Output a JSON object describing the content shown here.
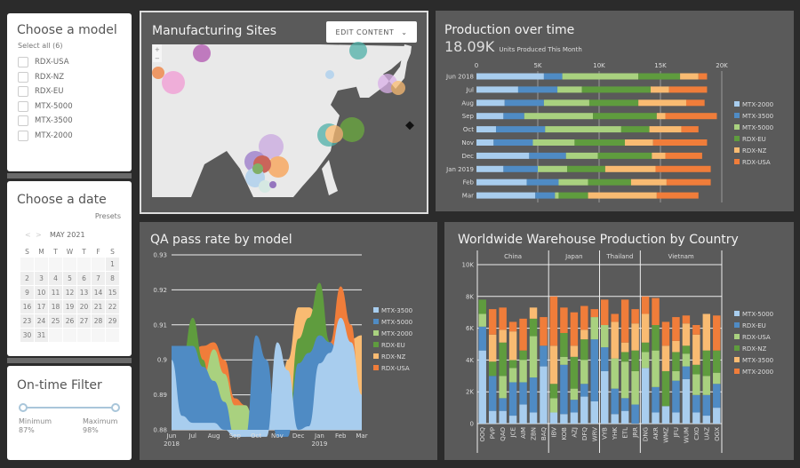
{
  "model_filter": {
    "title": "Choose a model",
    "select_all": "Select all (6)",
    "items": [
      "RDX-USA",
      "RDX-NZ",
      "RDX-EU",
      "MTX-5000",
      "MTX-3500",
      "MTX-2000"
    ]
  },
  "date_filter": {
    "title": "Choose a date",
    "presets": "Presets",
    "month": "MAY 2021",
    "weekdays": [
      "S",
      "M",
      "T",
      "W",
      "T",
      "F",
      "S"
    ],
    "weeks": [
      [
        "",
        "",
        "",
        "",
        "",
        "",
        "1"
      ],
      [
        "2",
        "3",
        "4",
        "5",
        "6",
        "7",
        "8"
      ],
      [
        "9",
        "10",
        "11",
        "12",
        "13",
        "14",
        "15"
      ],
      [
        "16",
        "17",
        "18",
        "19",
        "20",
        "21",
        "22"
      ],
      [
        "23",
        "24",
        "25",
        "26",
        "27",
        "28",
        "29"
      ],
      [
        "30",
        "31",
        "",
        "",
        "",
        "",
        ""
      ]
    ]
  },
  "ontime_filter": {
    "title": "On-time Filter",
    "min_label": "Minimum",
    "min_value": "87%",
    "max_label": "Maximum",
    "max_value": "98%"
  },
  "map": {
    "title": "Manufacturing Sites",
    "edit_button": "EDIT CONTENT",
    "zoom_in": "+",
    "zoom_out": "−"
  },
  "colors": {
    "MTX-2000": "#f07d3a",
    "MTX-3500": "#f9bb72",
    "MTX-5000": "#a8cdee",
    "RDX-EU": "#4f8bc4",
    "RDX-NZ": "#5f9c3e",
    "RDX-USA": "#a9d17f"
  },
  "chart_data": [
    {
      "type": "bar",
      "orientation": "horizontal",
      "stacked": true,
      "title": "Production over time",
      "kpi_value": "18.09K",
      "kpi_label": "Units Produced This Month",
      "categories": [
        "Jun 2018",
        "Jul",
        "Aug",
        "Sep",
        "Oct",
        "Nov",
        "Dec",
        "Jan 2019",
        "Feb",
        "Mar"
      ],
      "xlim": [
        0,
        20000
      ],
      "xticks": [
        "0",
        "5K",
        "10K",
        "15K",
        "20K"
      ],
      "grid": true,
      "legend": "right",
      "series": [
        {
          "name": "MTX-2000",
          "color": "#a8cdee",
          "values": [
            5500,
            3400,
            2300,
            2200,
            1600,
            1400,
            4300,
            2200,
            4100,
            4800
          ]
        },
        {
          "name": "MTX-3500",
          "color": "#4f8bc4",
          "values": [
            1500,
            3200,
            3200,
            1700,
            4000,
            3200,
            3000,
            2800,
            2600,
            1600
          ]
        },
        {
          "name": "MTX-5000",
          "color": "#a9d17f",
          "values": [
            6200,
            2000,
            3700,
            5600,
            6200,
            3400,
            2600,
            2400,
            2400,
            300
          ]
        },
        {
          "name": "RDX-EU",
          "color": "#5f9c3e",
          "values": [
            3400,
            5600,
            4000,
            5200,
            2300,
            4100,
            4400,
            3100,
            3500,
            2400
          ]
        },
        {
          "name": "RDX-NZ",
          "color": "#f9bb72",
          "values": [
            1500,
            1500,
            3900,
            700,
            2600,
            2300,
            1100,
            4100,
            2900,
            5600
          ]
        },
        {
          "name": "RDX-USA",
          "color": "#f07d3a",
          "values": [
            700,
            3100,
            1500,
            4200,
            1400,
            4400,
            3000,
            4500,
            3600,
            3400
          ]
        }
      ]
    },
    {
      "type": "area",
      "title": "QA pass rate by model",
      "ylim": [
        0.88,
        0.93
      ],
      "yticks": [
        "0.88",
        "0.89",
        "0.9",
        "0.91",
        "0.92",
        "0.93"
      ],
      "xticks": [
        "Jun",
        "Jul",
        "Aug",
        "Sep",
        "Oct",
        "Nov",
        "Dec",
        "Jan",
        "Feb",
        "Mar"
      ],
      "xticks_year": [
        "2018",
        "2019"
      ],
      "grid": true,
      "legend": "right",
      "x": [
        "Jun",
        "Jun 15",
        "Jul",
        "Jul 15",
        "Aug",
        "Aug 15",
        "Sep",
        "Sep 15",
        "Oct",
        "Oct 15",
        "Nov",
        "Nov 15",
        "Dec",
        "Dec 15",
        "Jan",
        "Jan 15",
        "Feb",
        "Feb 15",
        "Mar"
      ],
      "series": [
        {
          "name": "MTX-3500",
          "color": "#a8cdee",
          "values": [
            0.9,
            0.884,
            0.882,
            0.882,
            0.882,
            0.88,
            0.878,
            0.878,
            0.878,
            0.878,
            0.905,
            0.897,
            0.88,
            0.881,
            0.899,
            0.902,
            0.912,
            0.905,
            0.89
          ]
        },
        {
          "name": "MTX-5000",
          "color": "#4f8bc4",
          "values": [
            0.904,
            0.904,
            0.904,
            0.898,
            0.894,
            0.888,
            0.878,
            0.878,
            0.907,
            0.9,
            0.878,
            0.878,
            0.899,
            0.902,
            0.907,
            0.905,
            0.9,
            0.893,
            0.88
          ]
        },
        {
          "name": "MTX-2000",
          "color": "#a9d17f",
          "values": [
            0.88,
            0.88,
            0.88,
            0.895,
            0.903,
            0.896,
            0.887,
            0.887,
            0.88,
            0.88,
            0.88,
            0.88,
            0.88,
            0.88,
            0.88,
            0.88,
            0.88,
            0.88,
            0.88
          ]
        },
        {
          "name": "RDX-EU",
          "color": "#5f9c3e",
          "values": [
            0.88,
            0.9,
            0.912,
            0.9,
            0.88,
            0.88,
            0.88,
            0.88,
            0.88,
            0.88,
            0.88,
            0.88,
            0.906,
            0.912,
            0.922,
            0.905,
            0.88,
            0.88,
            0.88
          ]
        },
        {
          "name": "RDX-NZ",
          "color": "#f9bb72",
          "values": [
            0.88,
            0.88,
            0.88,
            0.88,
            0.88,
            0.88,
            0.88,
            0.88,
            0.88,
            0.88,
            0.88,
            0.9,
            0.915,
            0.915,
            0.912,
            0.905,
            0.909,
            0.906,
            0.907
          ]
        },
        {
          "name": "RDX-USA",
          "color": "#f07d3a",
          "values": [
            0.88,
            0.88,
            0.903,
            0.904,
            0.905,
            0.9,
            0.889,
            0.887,
            0.88,
            0.88,
            0.88,
            0.88,
            0.88,
            0.88,
            0.88,
            0.905,
            0.921,
            0.91,
            0.88
          ]
        }
      ]
    },
    {
      "type": "bar",
      "stacked": true,
      "title": "Worldwide Warehouse Production by Country",
      "ylim": [
        0,
        10000
      ],
      "yticks": [
        "0",
        "2K",
        "4K",
        "6K",
        "8K",
        "10K"
      ],
      "grid": true,
      "legend": "right",
      "groups": [
        {
          "name": "China",
          "categories": [
            "OOQ",
            "PVP",
            "QAO",
            "JCE",
            "AIM",
            "ZBN",
            "BAQ"
          ]
        },
        {
          "name": "Japan",
          "categories": [
            "IBV",
            "KOB",
            "AZJ",
            "DFQ",
            "WRV"
          ]
        },
        {
          "name": "Thailand",
          "categories": [
            "VYB",
            "YHK",
            "ETL",
            "JRR"
          ]
        },
        {
          "name": "Vietnam",
          "categories": [
            "DNG",
            "AKR",
            "WMZ",
            "JFU",
            "WUM",
            "CXO",
            "UAZ",
            "OGX"
          ]
        }
      ],
      "series": [
        {
          "name": "MTX-5000",
          "color": "#a8cdee",
          "values": [
            4600,
            800,
            800,
            500,
            1200,
            700,
            3600,
            700,
            600,
            700,
            1700,
            1400,
            3300,
            600,
            800,
            0,
            3500,
            700,
            1100,
            700,
            2800,
            700,
            500,
            1000
          ]
        },
        {
          "name": "RDX-EU",
          "color": "#4f8bc4",
          "values": [
            1500,
            2200,
            800,
            2100,
            1400,
            2200,
            1300,
            0,
            3100,
            800,
            800,
            3900,
            1500,
            1600,
            800,
            1200,
            0,
            1600,
            0,
            2000,
            800,
            1100,
            1300,
            1500
          ]
        },
        {
          "name": "RDX-USA",
          "color": "#a9d17f",
          "values": [
            800,
            0,
            1400,
            900,
            1400,
            2600,
            0,
            900,
            500,
            700,
            1500,
            1400,
            1400,
            1900,
            2300,
            2100,
            1000,
            2300,
            0,
            600,
            800,
            1300,
            1200,
            700
          ]
        },
        {
          "name": "RDX-NZ",
          "color": "#5f9c3e",
          "values": [
            900,
            900,
            2100,
            500,
            600,
            1100,
            0,
            900,
            1500,
            2000,
            1300,
            0,
            0,
            0,
            600,
            1300,
            600,
            1600,
            2200,
            1200,
            500,
            600,
            1600,
            1400
          ]
        },
        {
          "name": "MTX-3500",
          "color": "#f9bb72",
          "values": [
            0,
            1700,
            800,
            1800,
            0,
            700,
            0,
            2400,
            0,
            700,
            600,
            0,
            0,
            2300,
            600,
            1700,
            1800,
            0,
            1600,
            700,
            1400,
            1900,
            2300,
            0
          ]
        },
        {
          "name": "MTX-2000",
          "color": "#f07d3a",
          "values": [
            0,
            1600,
            1400,
            600,
            2000,
            0,
            1800,
            3100,
            1600,
            2100,
            1500,
            500,
            1600,
            500,
            2700,
            900,
            1100,
            1700,
            1500,
            1500,
            500,
            600,
            0,
            2200
          ]
        }
      ]
    }
  ]
}
